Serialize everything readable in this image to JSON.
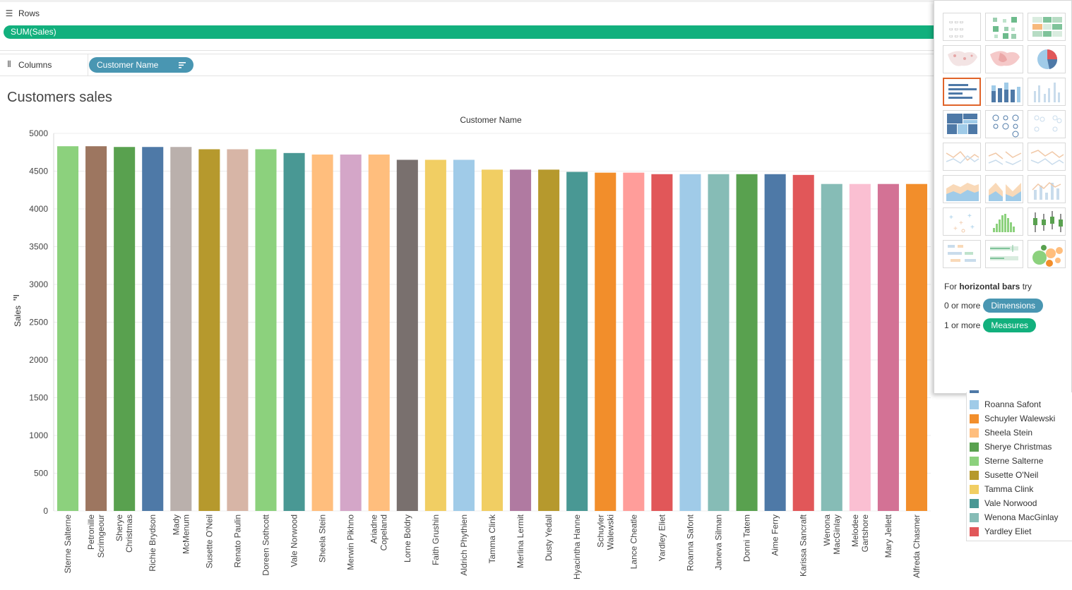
{
  "rows_shelf": {
    "label": "Rows",
    "pill": "SUM(Sales)"
  },
  "columns_shelf": {
    "label": "Columns",
    "pill": "Customer Name"
  },
  "chart_data": {
    "type": "bar",
    "title": "Customers sales",
    "xlabel": "Customer Name",
    "ylabel": "Sales",
    "ylim": [
      0,
      5000
    ],
    "yticks": [
      0,
      500,
      1000,
      1500,
      2000,
      2500,
      3000,
      3500,
      4000,
      4500,
      5000
    ],
    "grid": true,
    "categories": [
      "Sterne Salterne",
      "Petronille Scrimgeour",
      "Sherye Christmas",
      "Richie Brydson",
      "Mady McMenum",
      "Susette O'Neil",
      "Renato Paulin",
      "Doreen Sothcott",
      "Vale Norwood",
      "Sheela Stein",
      "Merwin Pikhno",
      "Ariadne Copeland",
      "Lorne Boldry",
      "Faith Grushin",
      "Aldrich Phythien",
      "Tamma Clink",
      "Merlina Lermit",
      "Dusty Yedall",
      "Hyacintha Hanne",
      "Schuyler Walewski",
      "Lance Cheatle",
      "Yardley Eliet",
      "Roanna Safont",
      "Janeva Silman",
      "Donni Tatem",
      "Aime Ferry",
      "Karissa Sancraft",
      "Wenona MacGinlay",
      "Melodee Gartshore",
      "Mary Jellett",
      "Alfreda Chasmer"
    ],
    "tick_labels": [
      [
        "Sterne Salterne"
      ],
      [
        "Petronille",
        "Scrimgeour"
      ],
      [
        "Sherye",
        "Christmas"
      ],
      [
        "Richie Brydson"
      ],
      [
        "Mady",
        "McMenum"
      ],
      [
        "Susette O'Neil"
      ],
      [
        "Renato Paulin"
      ],
      [
        "Doreen Sothcott"
      ],
      [
        "Vale Norwood"
      ],
      [
        "Sheela Stein"
      ],
      [
        "Merwin Pikhno"
      ],
      [
        "Ariadne",
        "Copeland"
      ],
      [
        "Lorne Boldry"
      ],
      [
        "Faith Grushin"
      ],
      [
        "Aldrich Phythien"
      ],
      [
        "Tamma Clink"
      ],
      [
        "Merlina Lermit"
      ],
      [
        "Dusty Yedall"
      ],
      [
        "Hyacintha Hanne"
      ],
      [
        "Schuyler",
        "Walewski"
      ],
      [
        "Lance Cheatle"
      ],
      [
        "Yardley Eliet"
      ],
      [
        "Roanna Safont"
      ],
      [
        "Janeva Silman"
      ],
      [
        "Donni Tatem"
      ],
      [
        "Aime Ferry"
      ],
      [
        "Karissa Sancraft"
      ],
      [
        "Wenona",
        "MacGinlay"
      ],
      [
        "Melodee",
        "Gartshore"
      ],
      [
        "Mary Jellett"
      ],
      [
        "Alfreda Chasmer"
      ]
    ],
    "values": [
      4830,
      4830,
      4820,
      4820,
      4820,
      4790,
      4790,
      4790,
      4740,
      4720,
      4720,
      4720,
      4650,
      4650,
      4650,
      4520,
      4520,
      4520,
      4490,
      4480,
      4480,
      4460,
      4460,
      4460,
      4460,
      4460,
      4450,
      4330,
      4330,
      4330,
      4330
    ],
    "colors": [
      "#8cd17d",
      "#9d7660",
      "#59a14f",
      "#4e79a7",
      "#bab0ac",
      "#b6992d",
      "#d7b5a6",
      "#8cd17d",
      "#499894",
      "#ffbe7d",
      "#d4a6c8",
      "#ffbe7d",
      "#79706e",
      "#f1ce63",
      "#a0cbe8",
      "#f1ce63",
      "#b07aa1",
      "#b6992d",
      "#499894",
      "#f28e2b",
      "#ff9d9a",
      "#e15759",
      "#a0cbe8",
      "#86bcb6",
      "#59a14f",
      "#4e79a7",
      "#e15759",
      "#86bcb6",
      "#fabfd2",
      "#d37295",
      "#f28e2b"
    ]
  },
  "showme": {
    "hint_prefix": "For ",
    "hint_bold": "horizontal bars",
    "hint_suffix": " try",
    "dim_prefix": "0 or more",
    "dim_pill": "Dimensions",
    "meas_prefix": "1 or more",
    "meas_pill": "Measures"
  },
  "legend": {
    "items": [
      {
        "name": "Roanna Safont",
        "color": "#a0cbe8"
      },
      {
        "name": "Schuyler Walewski",
        "color": "#f28e2b"
      },
      {
        "name": "Sheela Stein",
        "color": "#ffbe7d"
      },
      {
        "name": "Sherye Christmas",
        "color": "#59a14f"
      },
      {
        "name": "Sterne Salterne",
        "color": "#8cd17d"
      },
      {
        "name": "Susette O'Neil",
        "color": "#b6992d"
      },
      {
        "name": "Tamma Clink",
        "color": "#f1ce63"
      },
      {
        "name": "Vale Norwood",
        "color": "#499894"
      },
      {
        "name": "Wenona MacGinlay",
        "color": "#86bcb6"
      },
      {
        "name": "Yardley Eliet",
        "color": "#e15759"
      }
    ]
  }
}
